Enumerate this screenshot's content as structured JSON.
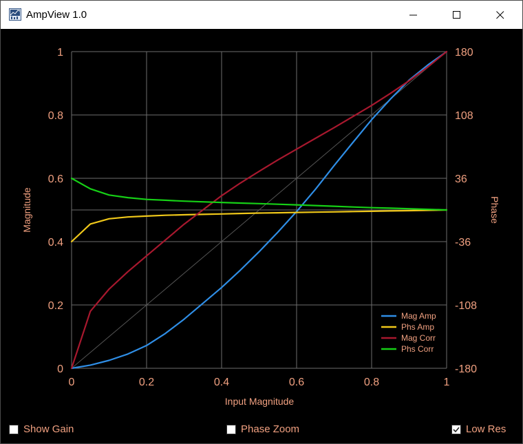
{
  "window": {
    "title": "AmpView 1.0",
    "icon": "app-chart-icon",
    "controls": [
      "minimize-icon",
      "maximize-icon",
      "close-icon"
    ]
  },
  "colors": {
    "background": "#000000",
    "grid": "#6e6e6e",
    "axis_text": "#f0a080",
    "mag_amp": "#2f8ee6",
    "phs_amp": "#f0c81a",
    "mag_corr": "#a8182e",
    "phs_corr": "#16d016",
    "reference": "#555555"
  },
  "chart_data": {
    "type": "line",
    "xlabel": "Input Magnitude",
    "ylabel": "Magnitude",
    "y2label": "Phase",
    "xlim": [
      0,
      1
    ],
    "ylim": [
      0,
      1
    ],
    "y2lim": [
      -180,
      180
    ],
    "x_ticks": [
      "0",
      "0.2",
      "0.4",
      "0.6",
      "0.8",
      "1"
    ],
    "y_ticks": [
      "0",
      "0.2",
      "0.4",
      "0.6",
      "0.8",
      "1"
    ],
    "y2_ticks": [
      "-180",
      "-108",
      "-36",
      "36",
      "108",
      "180"
    ],
    "grid": true,
    "legend_position": "bottom-right",
    "x": [
      0,
      0.05,
      0.1,
      0.15,
      0.2,
      0.25,
      0.3,
      0.35,
      0.4,
      0.45,
      0.5,
      0.55,
      0.6,
      0.65,
      0.7,
      0.75,
      0.8,
      0.85,
      0.9,
      0.95,
      1.0
    ],
    "series": [
      {
        "name": "Mag Amp",
        "axis": "left",
        "values": [
          0,
          0.01,
          0.025,
          0.045,
          0.072,
          0.11,
          0.155,
          0.205,
          0.255,
          0.31,
          0.368,
          0.43,
          0.495,
          0.565,
          0.64,
          0.713,
          0.785,
          0.85,
          0.91,
          0.958,
          1.0
        ]
      },
      {
        "name": "Phs Amp",
        "axis": "right",
        "values": [
          -36,
          -16,
          -10,
          -8,
          -7,
          -6,
          -5.5,
          -5,
          -4.5,
          -4,
          -3.5,
          -3.2,
          -2.8,
          -2.5,
          -2.2,
          -1.8,
          -1.5,
          -1.1,
          -0.8,
          -0.4,
          0
        ]
      },
      {
        "name": "Mag Corr",
        "axis": "left",
        "values": [
          0,
          0.18,
          0.25,
          0.305,
          0.355,
          0.405,
          0.455,
          0.5,
          0.545,
          0.585,
          0.622,
          0.658,
          0.692,
          0.726,
          0.76,
          0.795,
          0.83,
          0.868,
          0.908,
          0.952,
          1.0
        ]
      },
      {
        "name": "Phs Corr",
        "axis": "right",
        "values": [
          36,
          24,
          17,
          14,
          12,
          11,
          10,
          9.2,
          8.5,
          7.8,
          7.2,
          6.5,
          5.8,
          5,
          4.2,
          3.4,
          2.6,
          2,
          1.4,
          0.7,
          0
        ]
      },
      {
        "name": "",
        "axis": "left",
        "style": "reference",
        "values": [
          0,
          0.05,
          0.1,
          0.15,
          0.2,
          0.25,
          0.3,
          0.35,
          0.4,
          0.45,
          0.5,
          0.55,
          0.6,
          0.65,
          0.7,
          0.75,
          0.8,
          0.85,
          0.9,
          0.95,
          1.0
        ]
      }
    ]
  },
  "controls": {
    "show_gain": {
      "label": "Show Gain",
      "checked": false
    },
    "phase_zoom": {
      "label": "Phase Zoom",
      "checked": false
    },
    "low_res": {
      "label": "Low Res",
      "checked": true
    }
  }
}
